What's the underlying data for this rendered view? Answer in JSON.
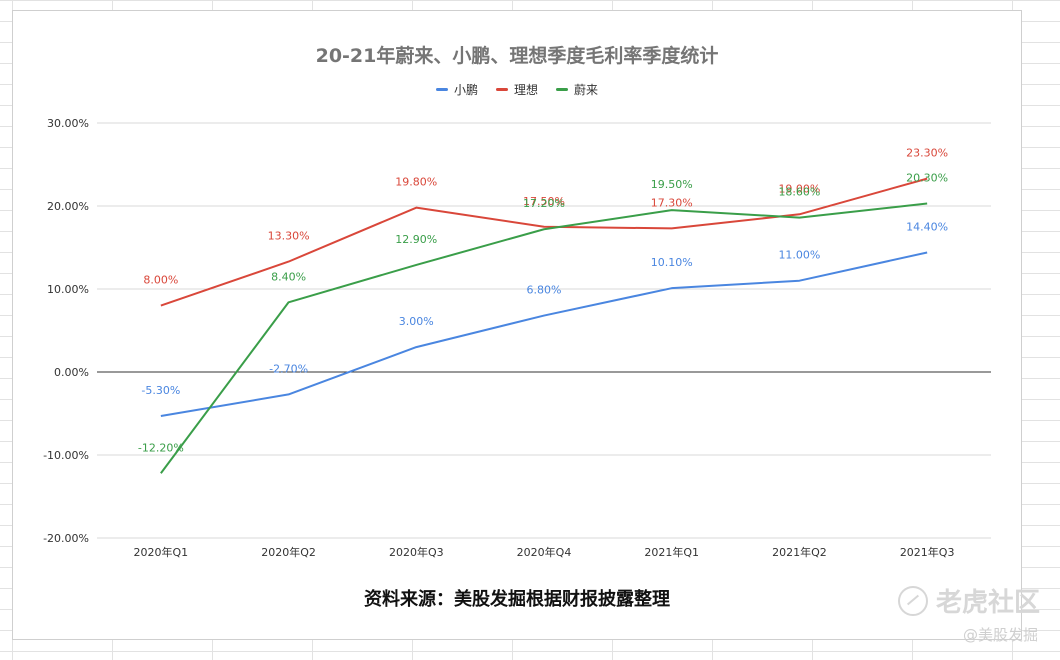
{
  "chart_data": {
    "type": "line",
    "title": "20-21年蔚来、小鹏、理想季度毛利率季度统计",
    "categories": [
      "2020年Q1",
      "2020年Q2",
      "2020年Q3",
      "2020年Q4",
      "2021年Q1",
      "2021年Q2",
      "2021年Q3"
    ],
    "series": [
      {
        "name": "小鹏",
        "color": "#4a86e0",
        "values": [
          -5.3,
          -2.7,
          3.0,
          6.8,
          10.1,
          11.0,
          14.4
        ],
        "labels": [
          "-5.30%",
          "-2.70%",
          "3.00%",
          "6.80%",
          "10.10%",
          "11.00%",
          "14.40%"
        ]
      },
      {
        "name": "理想",
        "color": "#d9473a",
        "values": [
          8.0,
          13.3,
          19.8,
          17.5,
          17.3,
          19.0,
          23.3
        ],
        "labels": [
          "8.00%",
          "13.30%",
          "19.80%",
          "17.50%",
          "17.30%",
          "19.00%",
          "23.30%"
        ]
      },
      {
        "name": "蔚来",
        "color": "#3a9e49",
        "values": [
          -12.2,
          8.4,
          12.9,
          17.2,
          19.5,
          18.6,
          20.3
        ],
        "labels": [
          "-12.20%",
          "8.40%",
          "12.90%",
          "17.20%",
          "19.50%",
          "18.60%",
          "20.30%"
        ]
      }
    ],
    "yticks": [
      30,
      20,
      10,
      0,
      -10,
      -20
    ],
    "ytick_labels": [
      "30.00%",
      "20.00%",
      "10.00%",
      "0.00%",
      "-10.00%",
      "-20.00%"
    ],
    "ylim": [
      -20,
      30
    ],
    "grid": true,
    "legend": "top-center"
  },
  "source_note": "资料来源：美股发掘根据财报披露整理",
  "watermark": {
    "main": "老虎社区",
    "sub": "@美股发掘"
  }
}
